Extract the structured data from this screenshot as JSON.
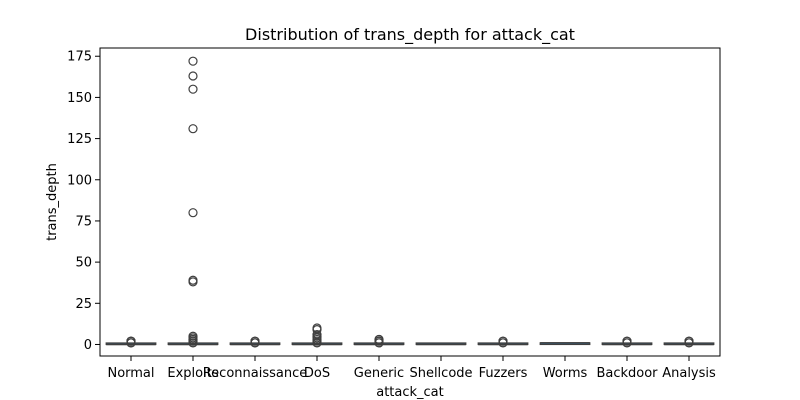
{
  "chart_data": {
    "type": "box",
    "title": "Distribution of trans_depth for attack_cat",
    "xlabel": "attack_cat",
    "ylabel": "trans_depth",
    "ylim": [
      -7,
      180
    ],
    "yticks": [
      0,
      25,
      50,
      75,
      100,
      125,
      150,
      175
    ],
    "categories": [
      "Normal",
      "Exploits",
      "Reconnaissance",
      "DoS",
      "Generic",
      "Shellcode",
      "Fuzzers",
      "Worms",
      "Backdoor",
      "Analysis"
    ],
    "boxes": [
      {
        "category": "Normal",
        "q1": 0,
        "median": 0,
        "q3": 0,
        "whisker_low": 0,
        "whisker_high": 0,
        "outliers": [
          1,
          1,
          1,
          2,
          2,
          2
        ]
      },
      {
        "category": "Exploits",
        "q1": 0,
        "median": 0,
        "q3": 0,
        "whisker_low": 0,
        "whisker_high": 0,
        "outliers": [
          1,
          1,
          2,
          2,
          3,
          3,
          4,
          5,
          38,
          39,
          80,
          131,
          155,
          163,
          172
        ]
      },
      {
        "category": "Reconnaissance",
        "q1": 0,
        "median": 0,
        "q3": 0,
        "whisker_low": 0,
        "whisker_high": 0,
        "outliers": [
          1,
          1,
          1,
          2,
          2
        ]
      },
      {
        "category": "DoS",
        "q1": 0,
        "median": 0,
        "q3": 0,
        "whisker_low": 0,
        "whisker_high": 0,
        "outliers": [
          1,
          1,
          2,
          3,
          4,
          5,
          6,
          9,
          10
        ]
      },
      {
        "category": "Generic",
        "q1": 0,
        "median": 0,
        "q3": 0,
        "whisker_low": 0,
        "whisker_high": 0,
        "outliers": [
          1,
          1,
          2,
          2,
          3,
          3
        ]
      },
      {
        "category": "Shellcode",
        "q1": 0,
        "median": 0,
        "q3": 0,
        "whisker_low": 0,
        "whisker_high": 0,
        "outliers": []
      },
      {
        "category": "Fuzzers",
        "q1": 0,
        "median": 0,
        "q3": 0,
        "whisker_low": 0,
        "whisker_high": 0,
        "outliers": [
          1,
          1,
          2,
          2
        ]
      },
      {
        "category": "Worms",
        "q1": 0,
        "median": 1,
        "q3": 1,
        "whisker_low": 0,
        "whisker_high": 1,
        "outliers": []
      },
      {
        "category": "Backdoor",
        "q1": 0,
        "median": 0,
        "q3": 0,
        "whisker_low": 0,
        "whisker_high": 0,
        "outliers": [
          1,
          1,
          2,
          2
        ]
      },
      {
        "category": "Analysis",
        "q1": 0,
        "median": 0,
        "q3": 0,
        "whisker_low": 0,
        "whisker_high": 0,
        "outliers": [
          1,
          1,
          2,
          2
        ]
      }
    ],
    "box_color": "#3274a1",
    "grid": false,
    "legend": "none"
  }
}
